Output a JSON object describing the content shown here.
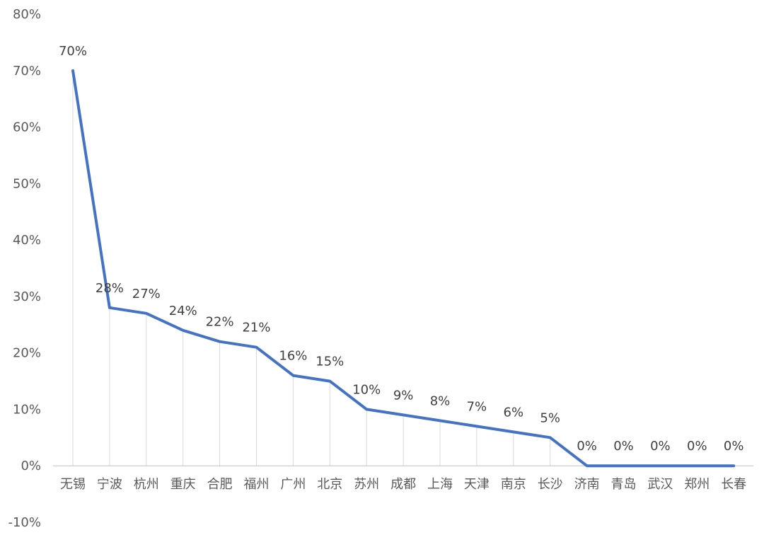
{
  "chart_data": {
    "type": "line",
    "title": "",
    "xlabel": "",
    "ylabel": "",
    "ylim": [
      -0.1,
      0.8
    ],
    "yticks": [
      "80%",
      "70%",
      "60%",
      "50%",
      "40%",
      "30%",
      "20%",
      "10%",
      "0%",
      "-10%"
    ],
    "categories": [
      "无锡",
      "宁波",
      "杭州",
      "重庆",
      "合肥",
      "福州",
      "广州",
      "北京",
      "苏州",
      "成都",
      "上海",
      "天津",
      "南京",
      "长沙",
      "济南",
      "青岛",
      "武汉",
      "郑州",
      "长春"
    ],
    "values": [
      0.7,
      0.28,
      0.27,
      0.24,
      0.22,
      0.21,
      0.16,
      0.15,
      0.1,
      0.09,
      0.08,
      0.07,
      0.06,
      0.05,
      0.0,
      0.0,
      0.0,
      0.0,
      0.0
    ],
    "data_labels": [
      "70%",
      "28%",
      "27%",
      "24%",
      "22%",
      "21%",
      "16%",
      "15%",
      "10%",
      "9%",
      "8%",
      "7%",
      "6%",
      "5%",
      "0%",
      "0%",
      "0%",
      "0%",
      "0%"
    ],
    "grid": false,
    "drop_lines": true,
    "legend": "none",
    "colors": {
      "line": "#4472C4",
      "drop_line": "#d9d9d9",
      "axis": "#bfbfbf"
    }
  }
}
